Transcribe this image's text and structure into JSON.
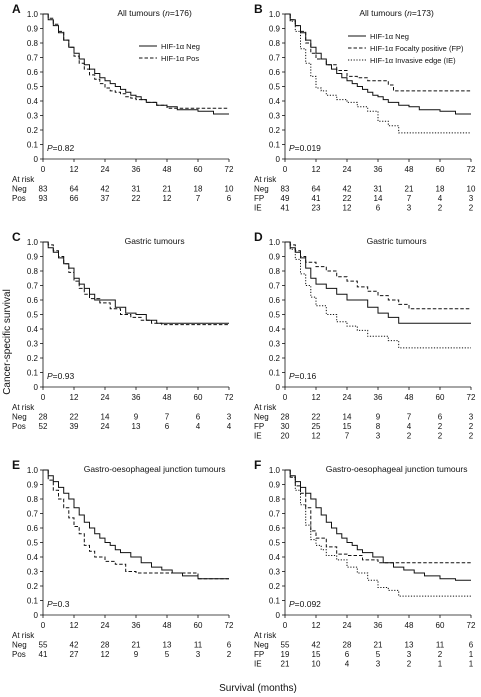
{
  "figure": {
    "ylabel": "Cancer-specific survival",
    "xlabel": "Survival (months)"
  },
  "chart_data": [
    {
      "panel": "A",
      "type": "line",
      "title": "All tumours (n=176)",
      "xlim": [
        0,
        72
      ],
      "ylim": [
        0,
        1.0
      ],
      "xticks": [
        0,
        12,
        24,
        36,
        48,
        60,
        72
      ],
      "yticks": [
        0,
        0.1,
        0.2,
        0.3,
        0.4,
        0.5,
        0.6,
        0.7,
        0.8,
        0.9,
        1.0
      ],
      "pvalue": "P=0.82",
      "legend_position": "top-right",
      "series": [
        {
          "name": "HIF-1α Neg",
          "style": "solid",
          "x": [
            0,
            2,
            4,
            6,
            8,
            10,
            12,
            14,
            16,
            18,
            20,
            22,
            24,
            26,
            28,
            30,
            32,
            34,
            36,
            38,
            40,
            44,
            48,
            52,
            56,
            60,
            66,
            72
          ],
          "y": [
            1.0,
            0.96,
            0.92,
            0.87,
            0.82,
            0.77,
            0.73,
            0.69,
            0.65,
            0.62,
            0.59,
            0.56,
            0.54,
            0.52,
            0.5,
            0.48,
            0.46,
            0.44,
            0.43,
            0.41,
            0.39,
            0.37,
            0.36,
            0.34,
            0.34,
            0.33,
            0.31,
            0.31
          ]
        },
        {
          "name": "HIF-1α Pos",
          "style": "dashed",
          "x": [
            0,
            2,
            4,
            6,
            8,
            10,
            12,
            14,
            16,
            18,
            20,
            22,
            24,
            26,
            28,
            30,
            32,
            34,
            36,
            40,
            44,
            48,
            52,
            56,
            60,
            66,
            72
          ],
          "y": [
            1.0,
            0.97,
            0.93,
            0.88,
            0.82,
            0.77,
            0.71,
            0.66,
            0.62,
            0.58,
            0.55,
            0.52,
            0.49,
            0.47,
            0.46,
            0.45,
            0.43,
            0.42,
            0.41,
            0.39,
            0.37,
            0.35,
            0.35,
            0.35,
            0.35,
            0.35,
            0.35
          ]
        }
      ],
      "at_risk": {
        "label": "At risk",
        "times": [
          0,
          12,
          24,
          36,
          48,
          60,
          72
        ],
        "rows": [
          {
            "group": "Neg",
            "counts": [
              83,
              64,
              42,
              31,
              21,
              18,
              10
            ]
          },
          {
            "group": "Pos",
            "counts": [
              93,
              66,
              37,
              22,
              12,
              7,
              6
            ]
          }
        ]
      }
    },
    {
      "panel": "B",
      "type": "line",
      "title": "All tumours (n=173)",
      "xlim": [
        0,
        72
      ],
      "ylim": [
        0,
        1.0
      ],
      "xticks": [
        0,
        12,
        24,
        36,
        48,
        60,
        72
      ],
      "yticks": [
        0,
        0.1,
        0.2,
        0.3,
        0.4,
        0.5,
        0.6,
        0.7,
        0.8,
        0.9,
        1.0
      ],
      "pvalue": "P=0.019",
      "legend_position": "top-right",
      "series": [
        {
          "name": "HIF-1α Neg",
          "style": "solid",
          "x": [
            0,
            2,
            4,
            6,
            8,
            10,
            12,
            14,
            16,
            18,
            20,
            22,
            24,
            26,
            28,
            30,
            32,
            34,
            36,
            38,
            40,
            44,
            48,
            52,
            56,
            60,
            66,
            72
          ],
          "y": [
            1.0,
            0.96,
            0.92,
            0.87,
            0.82,
            0.77,
            0.73,
            0.69,
            0.65,
            0.62,
            0.59,
            0.56,
            0.54,
            0.52,
            0.5,
            0.48,
            0.46,
            0.44,
            0.43,
            0.41,
            0.39,
            0.37,
            0.36,
            0.34,
            0.34,
            0.33,
            0.31,
            0.31
          ]
        },
        {
          "name": "HIF-1α Focalty positive (FP)",
          "style": "dashed",
          "x": [
            0,
            2,
            4,
            6,
            8,
            10,
            12,
            16,
            20,
            24,
            28,
            32,
            36,
            40,
            42,
            72
          ],
          "y": [
            1.0,
            0.96,
            0.92,
            0.88,
            0.8,
            0.73,
            0.69,
            0.65,
            0.61,
            0.57,
            0.56,
            0.54,
            0.54,
            0.51,
            0.47,
            0.47
          ]
        },
        {
          "name": "HIF-1α Invasive edge (IE)",
          "style": "dotted",
          "x": [
            0,
            2,
            4,
            6,
            8,
            10,
            12,
            14,
            16,
            20,
            24,
            28,
            32,
            36,
            40,
            44,
            48,
            72
          ],
          "y": [
            1.0,
            0.95,
            0.88,
            0.76,
            0.66,
            0.57,
            0.49,
            0.47,
            0.44,
            0.41,
            0.39,
            0.36,
            0.33,
            0.26,
            0.23,
            0.18,
            0.18,
            0.18
          ]
        }
      ],
      "at_risk": {
        "label": "At risk",
        "times": [
          0,
          12,
          24,
          36,
          48,
          60,
          72
        ],
        "rows": [
          {
            "group": "Neg",
            "counts": [
              83,
              64,
              42,
              31,
              21,
              18,
              10
            ]
          },
          {
            "group": "FP",
            "counts": [
              49,
              41,
              22,
              14,
              7,
              4,
              3
            ]
          },
          {
            "group": "IE",
            "counts": [
              41,
              23,
              12,
              6,
              3,
              2,
              2
            ]
          }
        ]
      }
    },
    {
      "panel": "C",
      "type": "line",
      "title": "Gastric tumours",
      "xlim": [
        0,
        72
      ],
      "ylim": [
        0,
        1.0
      ],
      "xticks": [
        0,
        12,
        24,
        36,
        48,
        60,
        72
      ],
      "yticks": [
        0,
        0.1,
        0.2,
        0.3,
        0.4,
        0.5,
        0.6,
        0.7,
        0.8,
        0.9,
        1.0
      ],
      "pvalue": "P=0.93",
      "series": [
        {
          "name": "",
          "style": "solid",
          "x": [
            0,
            2,
            4,
            6,
            8,
            10,
            12,
            14,
            16,
            18,
            20,
            24,
            28,
            32,
            36,
            40,
            44,
            72
          ],
          "y": [
            1.0,
            0.96,
            0.93,
            0.89,
            0.85,
            0.82,
            0.75,
            0.71,
            0.68,
            0.64,
            0.6,
            0.6,
            0.55,
            0.51,
            0.5,
            0.46,
            0.44,
            0.44
          ]
        },
        {
          "name": "",
          "style": "dashed",
          "x": [
            0,
            2,
            4,
            6,
            8,
            10,
            12,
            14,
            16,
            18,
            22,
            26,
            30,
            34,
            38,
            42,
            46,
            72
          ],
          "y": [
            1.0,
            0.98,
            0.94,
            0.9,
            0.85,
            0.79,
            0.73,
            0.68,
            0.64,
            0.61,
            0.58,
            0.54,
            0.5,
            0.48,
            0.46,
            0.44,
            0.43,
            0.43
          ]
        }
      ],
      "at_risk": {
        "label": "At risk",
        "times": [
          0,
          12,
          24,
          36,
          48,
          60,
          72
        ],
        "rows": [
          {
            "group": "Neg",
            "counts": [
              28,
              22,
              14,
              9,
              7,
              6,
              3
            ]
          },
          {
            "group": "Pos",
            "counts": [
              52,
              39,
              24,
              13,
              6,
              4,
              4
            ]
          }
        ]
      }
    },
    {
      "panel": "D",
      "type": "line",
      "title": "Gastric tumours",
      "xlim": [
        0,
        72
      ],
      "ylim": [
        0,
        1.0
      ],
      "xticks": [
        0,
        12,
        24,
        36,
        48,
        60,
        72
      ],
      "yticks": [
        0,
        0.1,
        0.2,
        0.3,
        0.4,
        0.5,
        0.6,
        0.7,
        0.8,
        0.9,
        1.0
      ],
      "pvalue": "P=0.16",
      "series": [
        {
          "name": "",
          "style": "solid",
          "x": [
            0,
            2,
            4,
            6,
            8,
            10,
            12,
            16,
            20,
            24,
            28,
            32,
            36,
            40,
            44,
            72
          ],
          "y": [
            1.0,
            0.96,
            0.93,
            0.89,
            0.82,
            0.75,
            0.71,
            0.68,
            0.64,
            0.6,
            0.6,
            0.55,
            0.51,
            0.48,
            0.44,
            0.44
          ]
        },
        {
          "name": "",
          "style": "dashed",
          "x": [
            0,
            2,
            4,
            6,
            8,
            12,
            16,
            20,
            24,
            28,
            32,
            36,
            40,
            44,
            48,
            72
          ],
          "y": [
            1.0,
            0.98,
            0.94,
            0.9,
            0.86,
            0.83,
            0.8,
            0.76,
            0.73,
            0.69,
            0.66,
            0.63,
            0.6,
            0.57,
            0.54,
            0.54
          ]
        },
        {
          "name": "",
          "style": "dotted",
          "x": [
            0,
            2,
            4,
            6,
            8,
            10,
            12,
            16,
            20,
            24,
            28,
            32,
            36,
            40,
            44,
            48,
            72
          ],
          "y": [
            1.0,
            0.95,
            0.88,
            0.78,
            0.7,
            0.62,
            0.56,
            0.5,
            0.45,
            0.42,
            0.39,
            0.35,
            0.35,
            0.32,
            0.27,
            0.27,
            0.27
          ]
        }
      ],
      "at_risk": {
        "label": "At risk",
        "times": [
          0,
          12,
          24,
          36,
          48,
          60,
          72
        ],
        "rows": [
          {
            "group": "Neg",
            "counts": [
              28,
              22,
              14,
              9,
              7,
              6,
              3
            ]
          },
          {
            "group": "FP",
            "counts": [
              30,
              25,
              15,
              8,
              4,
              2,
              2
            ]
          },
          {
            "group": "IE",
            "counts": [
              20,
              12,
              7,
              3,
              2,
              2,
              2
            ]
          }
        ]
      }
    },
    {
      "panel": "E",
      "type": "line",
      "title": "Gastro-oesophageal junction tumours",
      "xlim": [
        0,
        72
      ],
      "ylim": [
        0,
        1.0
      ],
      "xticks": [
        0,
        12,
        24,
        36,
        48,
        60,
        72
      ],
      "yticks": [
        0,
        0.1,
        0.2,
        0.3,
        0.4,
        0.5,
        0.6,
        0.7,
        0.8,
        0.9,
        1.0
      ],
      "pvalue": "P=0.3",
      "series": [
        {
          "name": "",
          "style": "solid",
          "x": [
            0,
            2,
            4,
            6,
            8,
            10,
            12,
            14,
            16,
            18,
            20,
            22,
            24,
            26,
            28,
            30,
            34,
            38,
            42,
            46,
            50,
            54,
            60,
            72
          ],
          "y": [
            1.0,
            0.96,
            0.92,
            0.88,
            0.84,
            0.8,
            0.74,
            0.69,
            0.64,
            0.6,
            0.56,
            0.53,
            0.5,
            0.48,
            0.45,
            0.43,
            0.4,
            0.36,
            0.33,
            0.31,
            0.29,
            0.27,
            0.25,
            0.25
          ]
        },
        {
          "name": "",
          "style": "dashed",
          "x": [
            0,
            2,
            4,
            6,
            8,
            10,
            12,
            14,
            16,
            18,
            20,
            24,
            28,
            32,
            36,
            48,
            60,
            72
          ],
          "y": [
            1.0,
            0.93,
            0.86,
            0.8,
            0.74,
            0.67,
            0.61,
            0.56,
            0.48,
            0.44,
            0.4,
            0.37,
            0.35,
            0.3,
            0.29,
            0.29,
            0.25,
            0.25
          ]
        }
      ],
      "at_risk": {
        "label": "At risk",
        "times": [
          0,
          12,
          24,
          36,
          48,
          60,
          72
        ],
        "rows": [
          {
            "group": "Neg",
            "counts": [
              55,
              42,
              28,
              21,
              13,
              11,
              6
            ]
          },
          {
            "group": "Pos",
            "counts": [
              41,
              27,
              12,
              9,
              5,
              3,
              2
            ]
          }
        ]
      }
    },
    {
      "panel": "F",
      "type": "line",
      "title": "Gastro-oesophageal junction tumours",
      "xlim": [
        0,
        72
      ],
      "ylim": [
        0,
        1.0
      ],
      "xticks": [
        0,
        12,
        24,
        36,
        48,
        60,
        72
      ],
      "yticks": [
        0,
        0.1,
        0.2,
        0.3,
        0.4,
        0.5,
        0.6,
        0.7,
        0.8,
        0.9,
        1.0
      ],
      "pvalue": "P=0.092",
      "series": [
        {
          "name": "",
          "style": "solid",
          "x": [
            0,
            2,
            4,
            6,
            8,
            10,
            12,
            14,
            16,
            18,
            20,
            22,
            24,
            26,
            28,
            30,
            34,
            38,
            42,
            46,
            50,
            54,
            60,
            66,
            72
          ],
          "y": [
            1.0,
            0.96,
            0.92,
            0.88,
            0.84,
            0.8,
            0.74,
            0.69,
            0.64,
            0.6,
            0.56,
            0.53,
            0.5,
            0.48,
            0.45,
            0.43,
            0.4,
            0.36,
            0.33,
            0.31,
            0.29,
            0.27,
            0.25,
            0.24,
            0.24
          ]
        },
        {
          "name": "",
          "style": "dashed",
          "x": [
            0,
            2,
            4,
            6,
            8,
            10,
            12,
            16,
            20,
            24,
            30,
            36,
            72
          ],
          "y": [
            1.0,
            0.95,
            0.89,
            0.84,
            0.74,
            0.58,
            0.53,
            0.47,
            0.42,
            0.41,
            0.38,
            0.36,
            0.36
          ]
        },
        {
          "name": "",
          "style": "dotted",
          "x": [
            0,
            2,
            4,
            6,
            8,
            10,
            12,
            14,
            16,
            20,
            24,
            28,
            32,
            36,
            40,
            44,
            72
          ],
          "y": [
            1.0,
            0.95,
            0.86,
            0.76,
            0.62,
            0.52,
            0.48,
            0.45,
            0.41,
            0.38,
            0.33,
            0.29,
            0.24,
            0.19,
            0.17,
            0.13,
            0.13
          ]
        }
      ],
      "at_risk": {
        "label": "At risk",
        "times": [
          0,
          12,
          24,
          36,
          48,
          60,
          72
        ],
        "rows": [
          {
            "group": "Neg",
            "counts": [
              55,
              42,
              28,
              21,
              13,
              11,
              6
            ]
          },
          {
            "group": "FP",
            "counts": [
              19,
              15,
              6,
              5,
              3,
              2,
              1
            ]
          },
          {
            "group": "IE",
            "counts": [
              21,
              10,
              4,
              3,
              2,
              1,
              1
            ]
          }
        ]
      }
    }
  ]
}
